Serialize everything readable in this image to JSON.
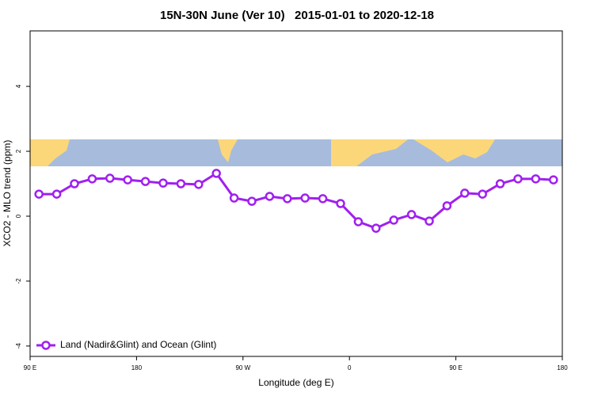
{
  "chart_data": {
    "type": "line",
    "title": "15N-30N June (Ver 10)   2015-01-01 to 2020-12-18",
    "x_label": "Longitude (deg E)",
    "y_label": "XCO2 - MLO trend (ppm)",
    "x": [
      97.5,
      112.5,
      127.5,
      142.5,
      157.5,
      172.5,
      187.5,
      202.5,
      217.5,
      232.5,
      247.5,
      262.5,
      277.5,
      292.5,
      307.5,
      322.5,
      337.5,
      352.5,
      367.5,
      382.5,
      397.5,
      412.5,
      427.5,
      442.5,
      457.5,
      472.5,
      487.5,
      502.5,
      517.5,
      532.5
    ],
    "series": [
      {
        "name": "Land (Nadir&Glint) and Ocean (Glint)",
        "color": "#a020f0",
        "values": [
          0.68,
          0.68,
          1.0,
          1.15,
          1.17,
          1.12,
          1.07,
          1.02,
          1.0,
          0.98,
          1.32,
          0.56,
          0.46,
          0.61,
          0.54,
          0.56,
          0.54,
          0.39,
          -0.17,
          -0.37,
          -0.12,
          0.05,
          -0.15,
          0.32,
          0.71,
          0.68,
          1.0,
          1.15,
          1.15,
          1.12
        ]
      }
    ],
    "xlim": [
      90,
      540
    ],
    "xticks": [
      {
        "value": 90,
        "label": "90 E"
      },
      {
        "value": 180,
        "label": "180"
      },
      {
        "value": 270,
        "label": "90 W"
      },
      {
        "value": 360,
        "label": "0"
      },
      {
        "value": 450,
        "label": "90 E"
      },
      {
        "value": 540,
        "label": "180"
      }
    ],
    "ylim": [
      -4.32,
      5.71
    ],
    "yticks": [
      -4,
      -2,
      0,
      2,
      4
    ],
    "legend": "bottom-left"
  }
}
